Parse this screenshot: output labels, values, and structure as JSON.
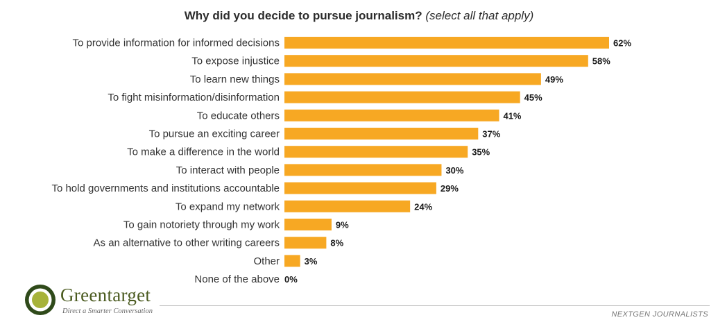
{
  "title": {
    "main": "Why did you decide to pursue journalism?",
    "sub": "(select all that apply)"
  },
  "colors": {
    "bar": "#F7A823",
    "brand_ring": "#2f4a1a",
    "brand_dot": "#a7b33a"
  },
  "brand": {
    "name": "Greentarget",
    "tagline": "Direct a Smarter Conversation",
    "icon": "target-logo-icon"
  },
  "footer": {
    "source": "NEXTGEN JOURNALISTS"
  },
  "chart_data": {
    "type": "bar",
    "orientation": "horizontal",
    "categories": [
      "To provide information for informed decisions",
      "To expose injustice",
      "To learn new things",
      "To fight misinformation/disinformation",
      "To educate others",
      "To pursue an exciting career",
      "To make a difference in the world",
      "To interact with people",
      "To hold governments and institutions accountable",
      "To expand my network",
      "To gain notoriety through my work",
      "As an alternative to other writing careers",
      "Other",
      "None of the above"
    ],
    "values": [
      62,
      58,
      49,
      45,
      41,
      37,
      35,
      30,
      29,
      24,
      9,
      8,
      3,
      0
    ],
    "value_labels": [
      "62%",
      "58%",
      "49%",
      "45%",
      "41%",
      "37%",
      "35%",
      "30%",
      "29%",
      "24%",
      "9%",
      "8%",
      "3%",
      "0%"
    ],
    "unit": "%",
    "xlim": [
      0,
      62
    ],
    "grid": false,
    "legend": "none"
  }
}
